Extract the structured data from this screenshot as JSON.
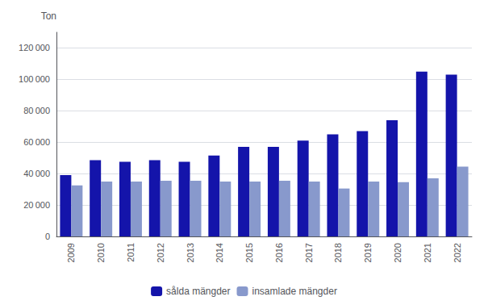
{
  "chart_data": {
    "type": "bar",
    "ylabel": "Ton",
    "categories": [
      "2009",
      "2010",
      "2011",
      "2012",
      "2013",
      "2014",
      "2015",
      "2016",
      "2017",
      "2018",
      "2019",
      "2020",
      "2021",
      "2022"
    ],
    "series": [
      {
        "name": "sålda mängder",
        "color": "#1414aa",
        "values": [
          39000,
          48500,
          47500,
          48500,
          47500,
          51500,
          57000,
          57000,
          61000,
          65000,
          67000,
          74000,
          105000,
          103000
        ]
      },
      {
        "name": "insamlade mängder",
        "color": "#8899cc",
        "values": [
          32500,
          35000,
          35000,
          35500,
          35500,
          35000,
          35000,
          35500,
          35000,
          30500,
          35000,
          34500,
          37000,
          44500
        ]
      }
    ],
    "ylim": [
      0,
      130000
    ],
    "yticks": [
      0,
      {
        "value": 20000,
        "label": "20 000"
      },
      {
        "value": 40000,
        "label": "40 000"
      },
      {
        "value": 60000,
        "label": "60 000"
      },
      {
        "value": 80000,
        "label": "80 000"
      },
      {
        "value": 100000,
        "label": "100 000"
      },
      {
        "value": 120000,
        "label": "120 000"
      }
    ],
    "grid": true,
    "legend": "bottom"
  }
}
